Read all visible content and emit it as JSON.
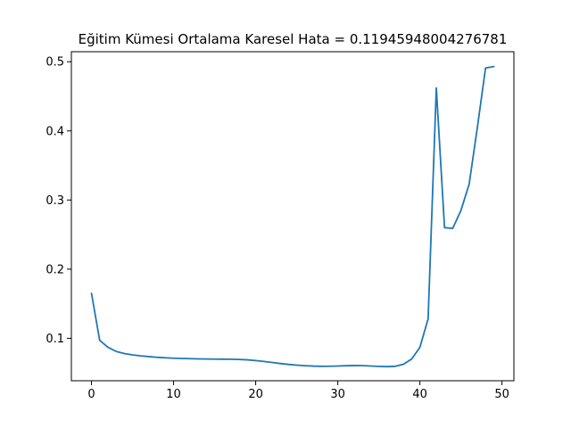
{
  "colors": {
    "series": "#1f77b4",
    "axis": "#000000",
    "background": "#ffffff"
  },
  "chart_data": {
    "type": "line",
    "title": "Eğitim Kümesi Ortalama Karesel Hata = 0.11945948004276781",
    "xlabel": "",
    "ylabel": "",
    "xlim": [
      -2.45,
      51.45
    ],
    "ylim": [
      0.0386,
      0.5145
    ],
    "grid": false,
    "legend": "none",
    "xticks": [
      0,
      10,
      20,
      30,
      40,
      50
    ],
    "yticks": [
      0.1,
      0.2,
      0.3,
      0.4,
      0.5
    ],
    "xtick_labels": [
      "0",
      "10",
      "20",
      "30",
      "40",
      "50"
    ],
    "ytick_labels": [
      "0.1",
      "0.2",
      "0.3",
      "0.4",
      "0.5"
    ],
    "series": [
      {
        "x": [
          0,
          1,
          2,
          3,
          4,
          5,
          6,
          7,
          8,
          9,
          10,
          11,
          12,
          13,
          14,
          15,
          16,
          17,
          18,
          19,
          20,
          21,
          22,
          23,
          24,
          25,
          26,
          27,
          28,
          29,
          30,
          31,
          32,
          33,
          34,
          35,
          36,
          37,
          38,
          39,
          40,
          41,
          42,
          43,
          44,
          45,
          46,
          47,
          48,
          49
        ],
        "values": [
          0.165,
          0.097,
          0.087,
          0.081,
          0.078,
          0.076,
          0.0745,
          0.0735,
          0.0725,
          0.0718,
          0.0712,
          0.0708,
          0.0705,
          0.0702,
          0.07,
          0.0699,
          0.0698,
          0.0697,
          0.0694,
          0.0688,
          0.0678,
          0.0665,
          0.065,
          0.0635,
          0.0622,
          0.0612,
          0.0604,
          0.0598,
          0.0595,
          0.0596,
          0.0599,
          0.0603,
          0.0606,
          0.0605,
          0.0599,
          0.0594,
          0.059,
          0.0595,
          0.0625,
          0.07,
          0.087,
          0.128,
          0.462,
          0.26,
          0.259,
          0.285,
          0.323,
          0.405,
          0.491,
          0.493
        ]
      }
    ]
  }
}
